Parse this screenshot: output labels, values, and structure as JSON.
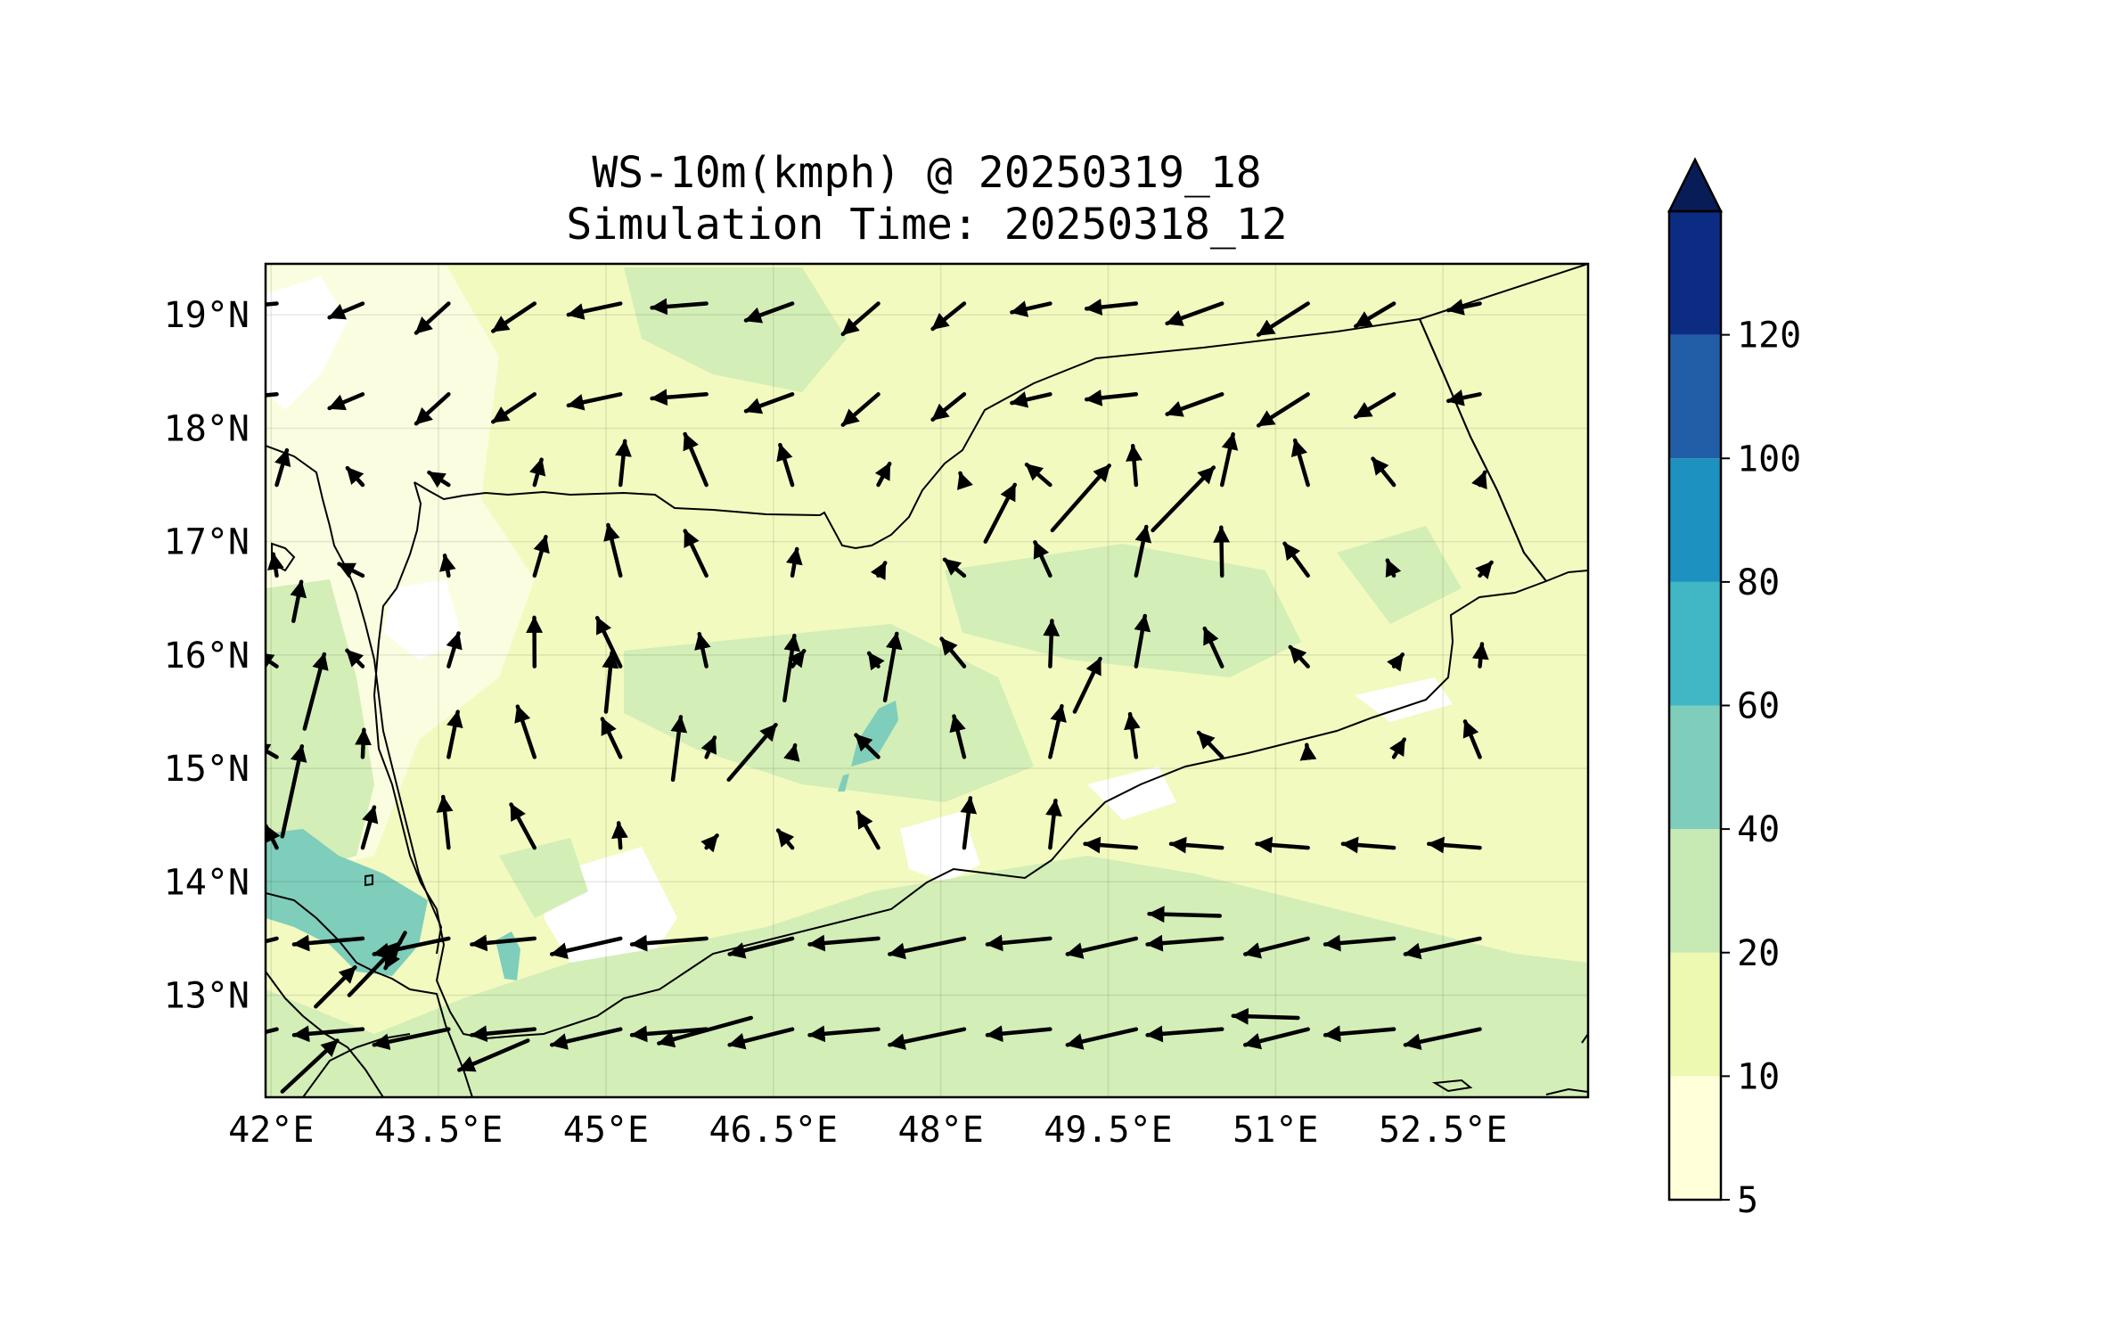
{
  "chart_data": {
    "type": "map",
    "title": "WS-10m(kmph) @ 20250319_18",
    "subtitle": "Simulation Time: 20250318_12",
    "lon_range": [
      41.95,
      53.8
    ],
    "lat_range": [
      12.1,
      19.45
    ],
    "lon_ticks": [
      "42°E",
      "43.5°E",
      "45°E",
      "46.5°E",
      "48°E",
      "49.5°E",
      "51°E",
      "52.5°E"
    ],
    "lon_tick_values": [
      42,
      43.5,
      45,
      46.5,
      48,
      49.5,
      51,
      52.5
    ],
    "lat_ticks": [
      "13°N",
      "14°N",
      "15°N",
      "16°N",
      "17°N",
      "18°N",
      "19°N"
    ],
    "lat_tick_values": [
      13,
      14,
      15,
      16,
      17,
      18,
      19
    ],
    "grid": true,
    "colorbar": {
      "levels": [
        "5",
        "10",
        "20",
        "40",
        "60",
        "80",
        "100",
        "120"
      ],
      "colors": [
        "#ffffd9",
        "#edf8b1",
        "#c7e9b4",
        "#7fcdbb",
        "#41b6c4",
        "#1d91c0",
        "#225ea8",
        "#0c2c84"
      ],
      "extend_color": "#081d58",
      "extend": "max",
      "placement": "right"
    },
    "field_colors": {
      "land_base": "#f2fac0",
      "sea_band": "#d3eeb7",
      "strong": "#7fcdbb",
      "calm": "#ffffff",
      "light": "#fbfde0"
    },
    "wind_vectors": [
      {
        "lon": 42.3,
        "lat": 15.35,
        "u": 1,
        "v": 3.8
      },
      {
        "lon": 42.1,
        "lat": 14.4,
        "u": 1,
        "v": 4.6
      },
      {
        "lon": 42.4,
        "lat": 12.9,
        "u": 2,
        "v": 2
      },
      {
        "lon": 42.7,
        "lat": 13.0,
        "u": 2.6,
        "v": 2.7
      },
      {
        "lon": 42.1,
        "lat": 12.15,
        "u": 2.8,
        "v": 2.6
      },
      {
        "lon": 42.2,
        "lat": 16.3,
        "u": 0.4,
        "v": 2
      },
      {
        "lon": 43.2,
        "lat": 13.55,
        "u": -1,
        "v": -1.8
      },
      {
        "lon": 45.6,
        "lat": 14.9,
        "u": 0.4,
        "v": 3.2
      },
      {
        "lon": 46.1,
        "lat": 14.9,
        "u": 2.4,
        "v": 2.8
      },
      {
        "lon": 47.5,
        "lat": 15.6,
        "u": 0.6,
        "v": 3.4
      },
      {
        "lon": 46.6,
        "lat": 15.6,
        "u": 0.5,
        "v": 3.3
      },
      {
        "lon": 45.0,
        "lat": 15.5,
        "u": 0.3,
        "v": 3
      },
      {
        "lon": 48.4,
        "lat": 17.0,
        "u": 1.5,
        "v": 2.9
      },
      {
        "lon": 49.0,
        "lat": 17.1,
        "u": 2.9,
        "v": 3.3
      },
      {
        "lon": 49.9,
        "lat": 17.1,
        "u": 3.1,
        "v": 3.2
      },
      {
        "lon": 49.2,
        "lat": 15.5,
        "u": 1.3,
        "v": 2.7
      },
      {
        "lon": 51.2,
        "lat": 12.8,
        "u": -3.3,
        "v": 0.1
      },
      {
        "lon": 50.5,
        "lat": 13.7,
        "u": -3.6,
        "v": 0.1
      },
      {
        "lon": 46.3,
        "lat": 12.8,
        "u": -4.7,
        "v": -1.3
      },
      {
        "lon": 44.3,
        "lat": 12.6,
        "u": -3.5,
        "v": -1.5
      }
    ]
  }
}
